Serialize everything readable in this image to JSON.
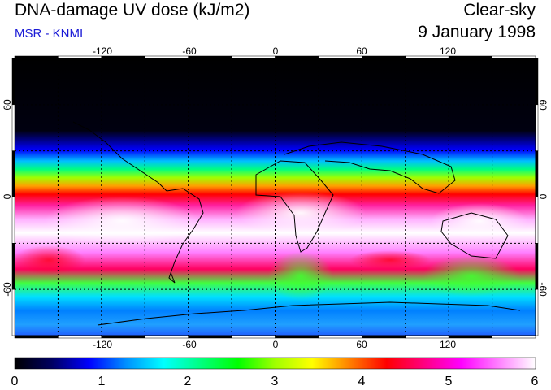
{
  "header": {
    "title": "DNA-damage UV dose (kJ/m2)",
    "source": "MSR - KNMI",
    "condition": "Clear-sky",
    "date": "9 January 1998"
  },
  "colors": {
    "source_text": "#1a1ad6",
    "ocean_dark": "#000000",
    "colorbar": [
      "#000000",
      "#000060",
      "#0000ff",
      "#0090ff",
      "#00ffff",
      "#00ff80",
      "#00ff00",
      "#a0ff00",
      "#ffff00",
      "#ff8000",
      "#ff0000",
      "#ff0080",
      "#ff00ff",
      "#ff80ff",
      "#ffffff"
    ]
  },
  "map": {
    "lon_ticks": [
      "-120",
      "-60",
      "0",
      "60",
      "120"
    ],
    "lat_ticks_left": [
      "60",
      "0",
      "-60"
    ],
    "lat_ticks_right": [
      "60",
      "0",
      "-60"
    ],
    "lon_range": [
      -180,
      180
    ],
    "lat_range": [
      -90,
      90
    ],
    "grid_lon_step": 30,
    "grid_lat_step": 30
  },
  "colorbar": {
    "min": 0,
    "max": 6,
    "labels": [
      "0",
      "1",
      "2",
      "3",
      "4",
      "5",
      "6"
    ]
  }
}
